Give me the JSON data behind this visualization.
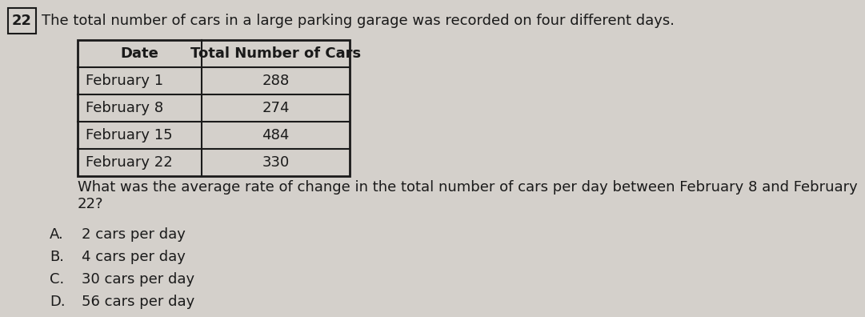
{
  "question_number": "22",
  "intro_text": "The total number of cars in a large parking garage was recorded on four different days.",
  "table_headers": [
    "Date",
    "Total Number of Cars"
  ],
  "table_rows": [
    [
      "February 1",
      "288"
    ],
    [
      "February 8",
      "274"
    ],
    [
      "February 15",
      "484"
    ],
    [
      "February 22",
      "330"
    ]
  ],
  "question_text": "What was the average rate of change in the total number of cars per day between February 8 and February\n22?",
  "answer_labels": [
    "A.",
    "B.",
    "C.",
    "D."
  ],
  "answer_texts": [
    "2 cars per day",
    "4 cars per day",
    "30 cars per day",
    "56 cars per day"
  ],
  "bg_color": "#d4d0cb",
  "text_color": "#1a1a1a",
  "table_border_color": "#1a1a1a",
  "font_size_intro": 13,
  "font_size_table_header": 13,
  "font_size_table_data": 13,
  "font_size_question": 13,
  "font_size_answers": 13,
  "font_size_number": 13
}
